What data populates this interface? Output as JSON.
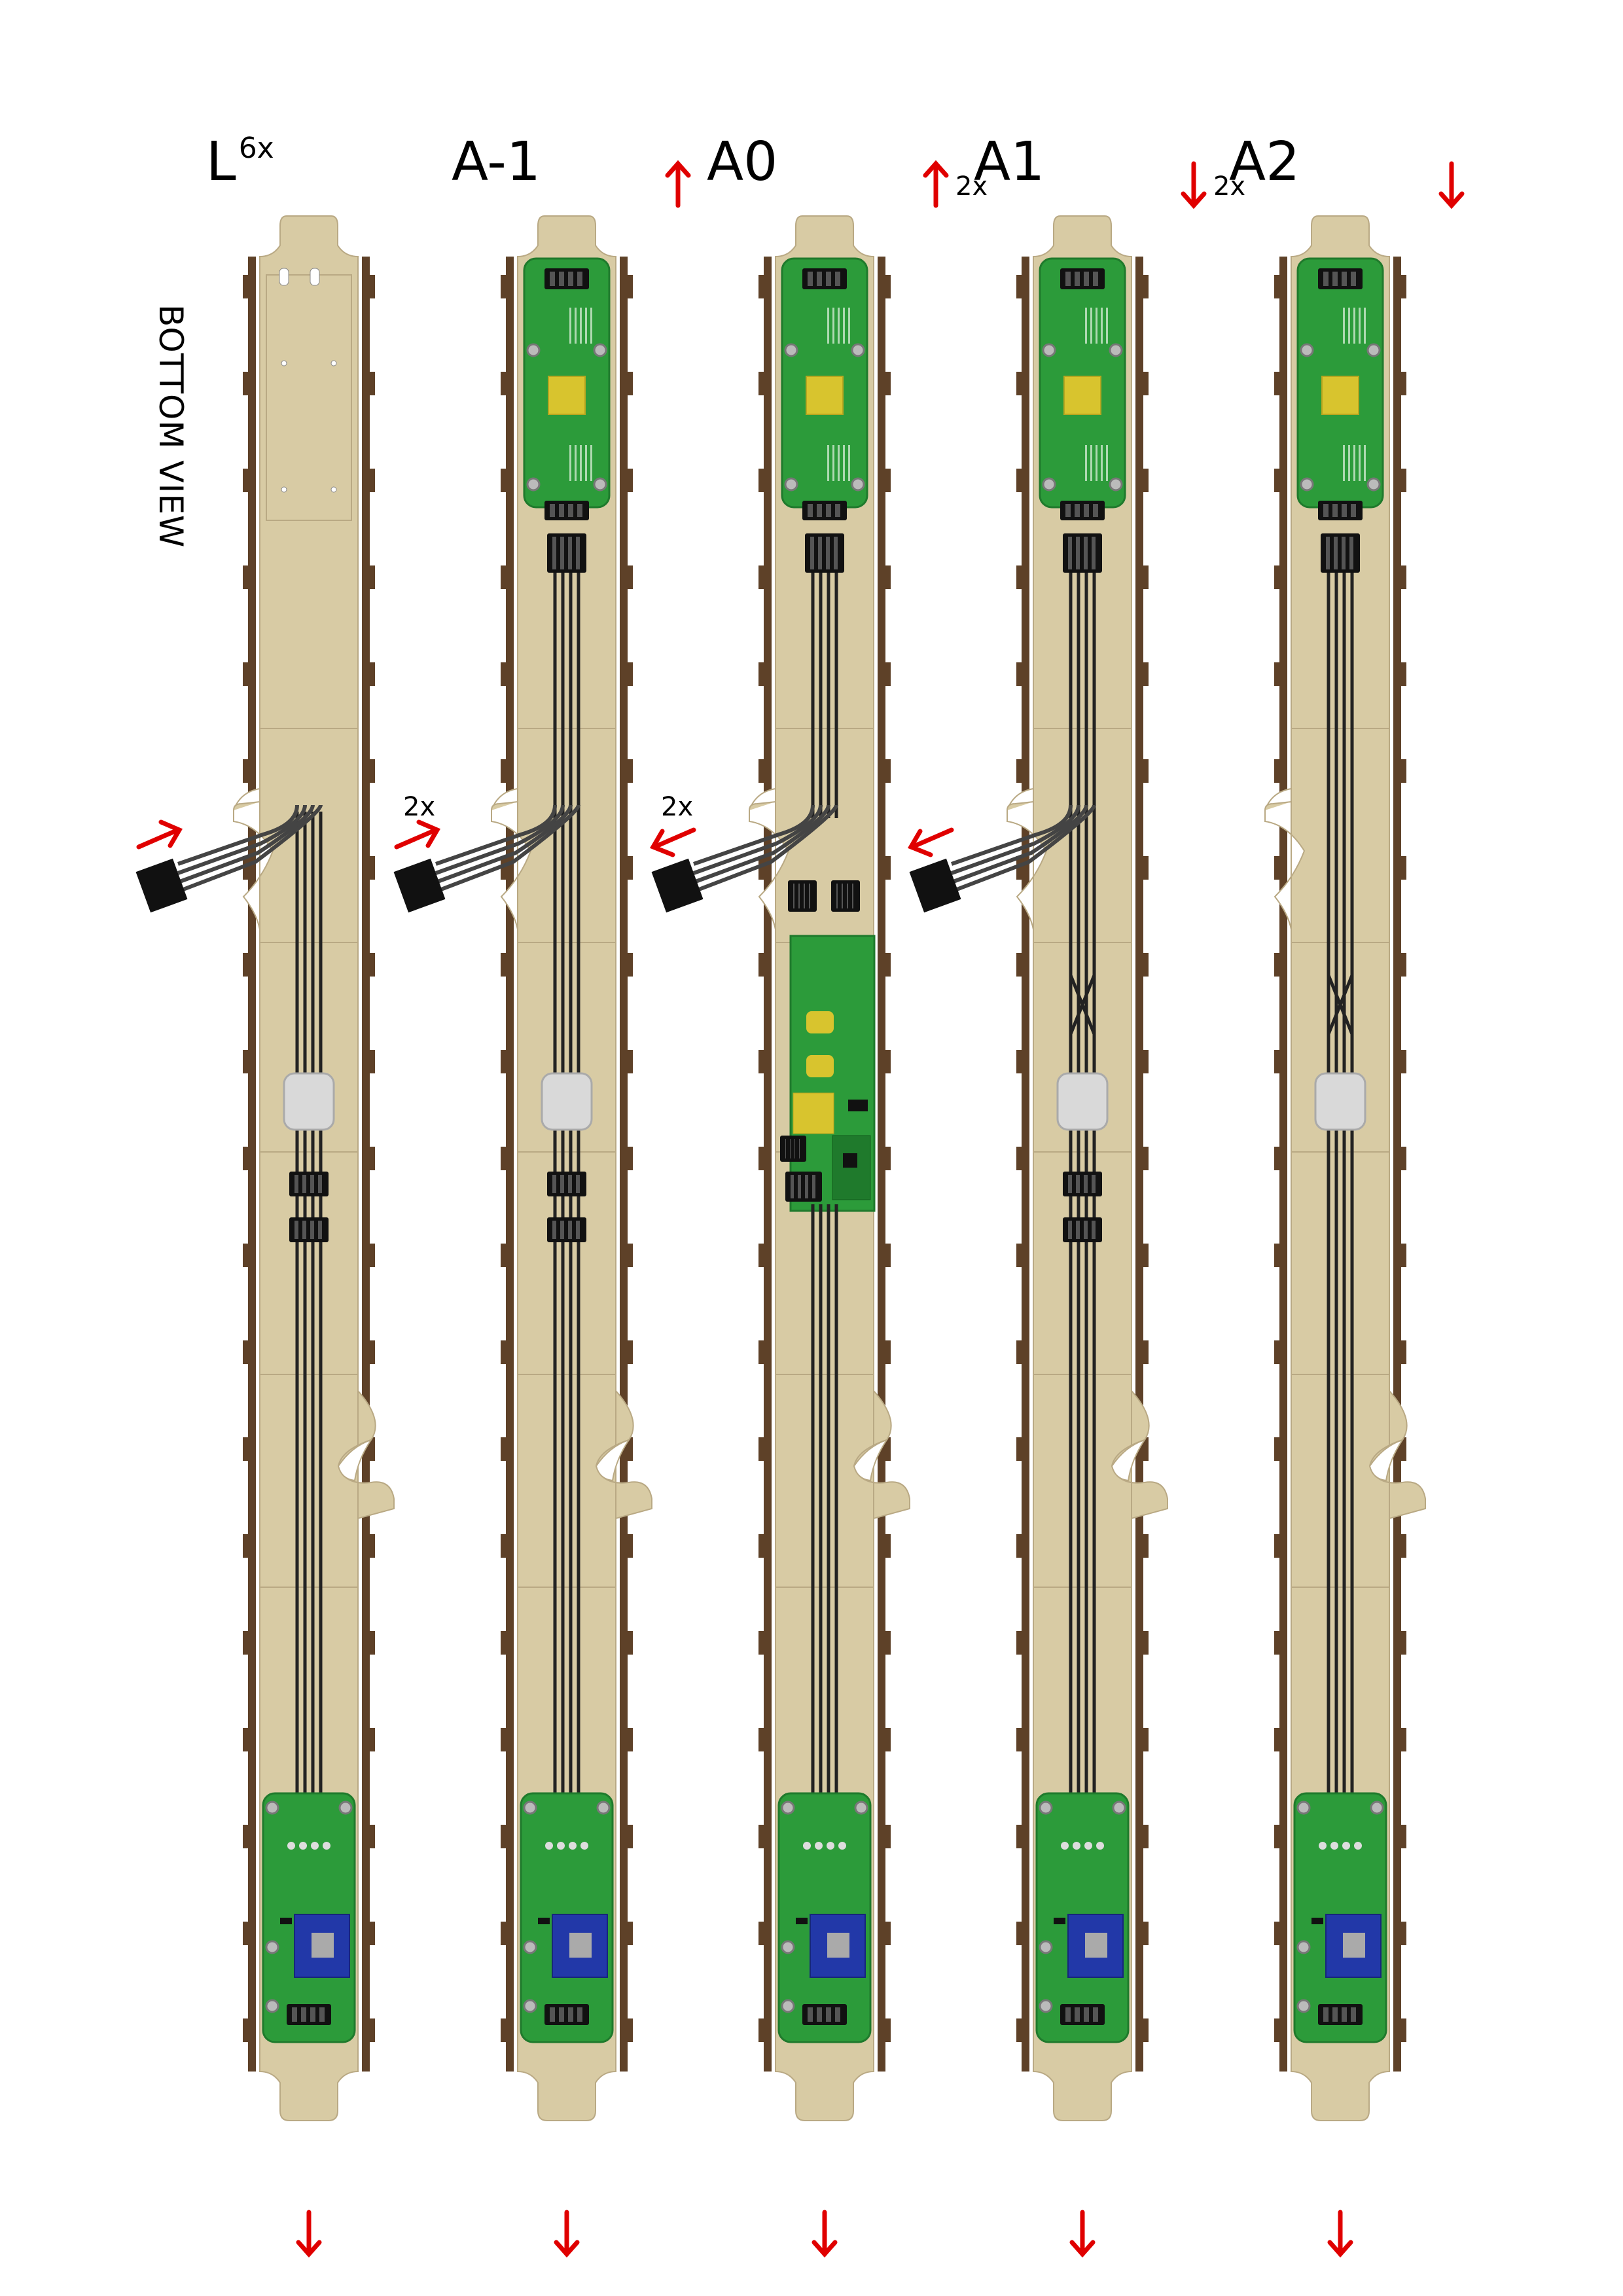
{
  "side_label": "BOTTOM VIEW",
  "colors": {
    "wood": "#d8cba4",
    "wood_edge": "#b9a984",
    "rail": "#5e4128",
    "pcb": "#2c9b3a",
    "pcb_dark": "#1f7a2c",
    "connector": "#111111",
    "chip_yellow": "#d8c42e",
    "chip_blue": "#2238a8",
    "arrow": "#e00000",
    "cable": "#333333",
    "pad": "#d9d9d9"
  },
  "columns": [
    {
      "id": "L",
      "title": "L",
      "title_superscript": "6x",
      "top_arrow": null,
      "top_multiplier": "",
      "top_pcb": false,
      "side_cable": {
        "direction": "in",
        "multiplier": ""
      },
      "notch": "bottom",
      "middle": "l-connectors",
      "bottom_arrow": "down"
    },
    {
      "id": "A-1",
      "title": "A-1",
      "title_superscript": "",
      "top_arrow": "up",
      "top_multiplier": "",
      "top_pcb": true,
      "side_cable": {
        "direction": "in",
        "multiplier": "2x"
      },
      "notch": "bottom",
      "middle": "l-connectors",
      "bottom_arrow": "down"
    },
    {
      "id": "A0",
      "title": "A0",
      "title_superscript": "",
      "top_arrow": "up",
      "top_multiplier": "2x",
      "top_pcb": true,
      "side_cable": {
        "direction": "out",
        "multiplier": "2x"
      },
      "notch": "bottom",
      "middle": "controller-board",
      "bottom_arrow": "down"
    },
    {
      "id": "A1",
      "title": "A1",
      "title_superscript": "",
      "top_arrow": "down",
      "top_multiplier": "2x",
      "top_pcb": true,
      "side_cable": {
        "direction": "out",
        "multiplier": ""
      },
      "notch": "bottom",
      "middle": "crossed-connectors",
      "bottom_arrow": "down"
    },
    {
      "id": "A2",
      "title": "A2",
      "title_superscript": "",
      "top_arrow": "down",
      "top_multiplier": "",
      "top_pcb": true,
      "side_cable": null,
      "notch": "both",
      "middle": "crossed",
      "bottom_arrow": "down"
    }
  ]
}
